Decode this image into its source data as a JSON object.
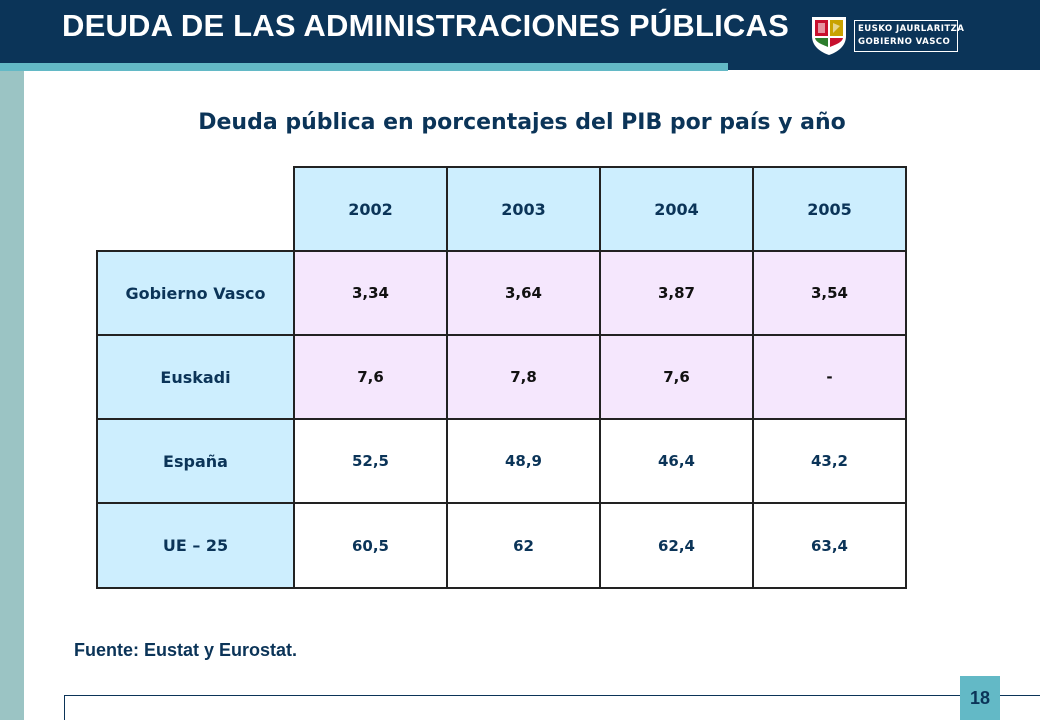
{
  "header": {
    "title": "DEUDA DE LAS ADMINISTRACIONES PÚBLICAS",
    "logo": {
      "line1": "EUSKO JAURLARITZA",
      "line2": "GOBIERNO VASCO",
      "icon": "coat-of-arms-icon"
    }
  },
  "subtitle": "Deuda pública en porcentajes del PIB por país y año",
  "table": {
    "columns": [
      "2002",
      "2003",
      "2004",
      "2005"
    ],
    "rows": [
      {
        "label": "Gobierno Vasco",
        "values": [
          "3,34",
          "3,64",
          "3,87",
          "3,54"
        ]
      },
      {
        "label": "Euskadi",
        "values": [
          "7,6",
          "7,8",
          "7,6",
          "-"
        ]
      },
      {
        "label": "España",
        "values": [
          "52,5",
          "48,9",
          "46,4",
          "43,2"
        ]
      },
      {
        "label": "UE – 25",
        "values": [
          "60,5",
          "62",
          "62,4",
          "63,4"
        ]
      }
    ]
  },
  "source": "Fuente: Eustat y Eurostat.",
  "page_number": "18",
  "colors": {
    "navy": "#0b3458",
    "teal_accent": "#63b9c6",
    "header_cell": "#cdeefe",
    "lilac_cell": "#f5e7fd"
  }
}
